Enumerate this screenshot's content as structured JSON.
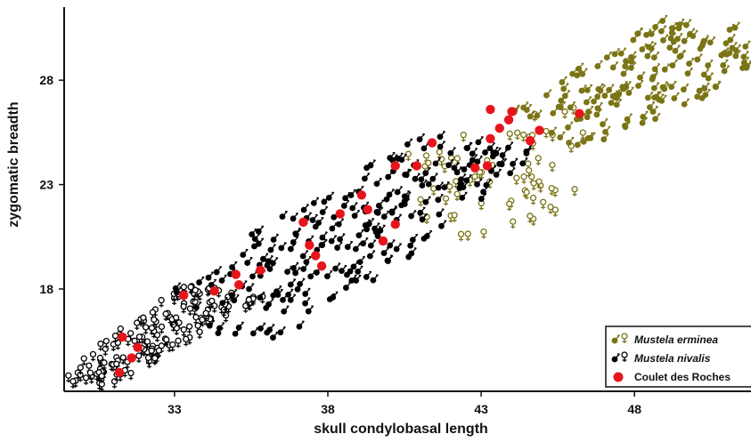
{
  "chart_data": {
    "type": "scatter",
    "xlabel": "skull condylobasal length",
    "ylabel": "zygomatic breadth",
    "xlim": [
      29.4,
      51.8
    ],
    "ylim": [
      13.1,
      31.5
    ],
    "x_ticks": [
      "33",
      "38",
      "43",
      "48"
    ],
    "x_tick_values": [
      33,
      38,
      43,
      48
    ],
    "y_ticks": [
      "18",
      "23",
      "28"
    ],
    "y_tick_values": [
      18,
      23,
      28
    ],
    "legend_position": "bottom-right",
    "legend": [
      {
        "label": "Mustela erminea",
        "italic": true,
        "marker": "male-female",
        "color": "#7a7415"
      },
      {
        "label": "Mustela nivalis",
        "italic": true,
        "marker": "male-female",
        "color": "#000000"
      },
      {
        "label": "Coulet des Roches",
        "italic": false,
        "marker": "dot",
        "color": "#e8141c"
      }
    ],
    "series": [
      {
        "name": "Mustela erminea",
        "marker": "sex-symbol",
        "color": "#7a7415",
        "clouds": [
          {
            "sex": "female",
            "x": [
              40.5,
              46.5
            ],
            "y": [
              20.5,
              27.5
            ],
            "band": [
              [
                40.5,
                24.9
              ],
              [
                46.5,
                26.9
              ],
              [
                45.9,
                20.8
              ],
              [
                40.9,
                20.4
              ]
            ],
            "n": 70
          },
          {
            "sex": "male",
            "x": [
              44.0,
              51.8
            ],
            "y": [
              24.5,
              31.0
            ],
            "band": [
              [
                44.0,
                26.5
              ],
              [
                48.5,
                31.0
              ],
              [
                51.8,
                30.6
              ],
              [
                51.8,
                28.2
              ],
              [
                46.5,
                24.5
              ]
            ],
            "n": 160
          }
        ]
      },
      {
        "name": "Mustela nivalis",
        "marker": "sex-symbol",
        "color": "#000000",
        "clouds": [
          {
            "sex": "female",
            "x": [
              29.4,
              36.0
            ],
            "y": [
              13.2,
              18.2
            ],
            "band": [
              [
                29.4,
                13.5
              ],
              [
                30.0,
                14.7
              ],
              [
                33.3,
                18.2
              ],
              [
                36.0,
                17.6
              ],
              [
                33.0,
                15.2
              ],
              [
                31.0,
                13.3
              ]
            ],
            "n": 150
          },
          {
            "sex": "male",
            "x": [
              32.8,
              45.0
            ],
            "y": [
              15.0,
              25.5
            ],
            "band": [
              [
                32.8,
                18.1
              ],
              [
                37.0,
                22.1
              ],
              [
                41.2,
                25.6
              ],
              [
                44.8,
                24.6
              ],
              [
                40.5,
                19.2
              ],
              [
                36.5,
                15.7
              ],
              [
                35.0,
                15.0
              ]
            ],
            "n": 230
          }
        ]
      },
      {
        "name": "Coulet des Roches",
        "marker": "dot",
        "color": "#e8141c",
        "x": [
          31.2,
          31.6,
          31.8,
          31.3,
          33.3,
          34.3,
          35.1,
          35.0,
          35.8,
          37.2,
          37.4,
          37.8,
          37.6,
          38.4,
          39.1,
          39.3,
          39.8,
          40.2,
          40.2,
          40.9,
          41.4,
          42.8,
          43.2,
          43.3,
          43.6,
          43.9,
          44.0,
          43.3,
          44.6,
          44.9,
          46.2
        ],
        "y": [
          14.0,
          14.7,
          15.2,
          15.7,
          17.7,
          17.9,
          18.2,
          18.7,
          18.9,
          21.2,
          20.1,
          19.1,
          19.6,
          21.6,
          22.5,
          21.8,
          20.3,
          21.1,
          23.9,
          23.9,
          25.0,
          23.8,
          23.9,
          25.2,
          25.7,
          26.1,
          26.5,
          26.6,
          25.1,
          25.6,
          26.4
        ]
      }
    ]
  }
}
